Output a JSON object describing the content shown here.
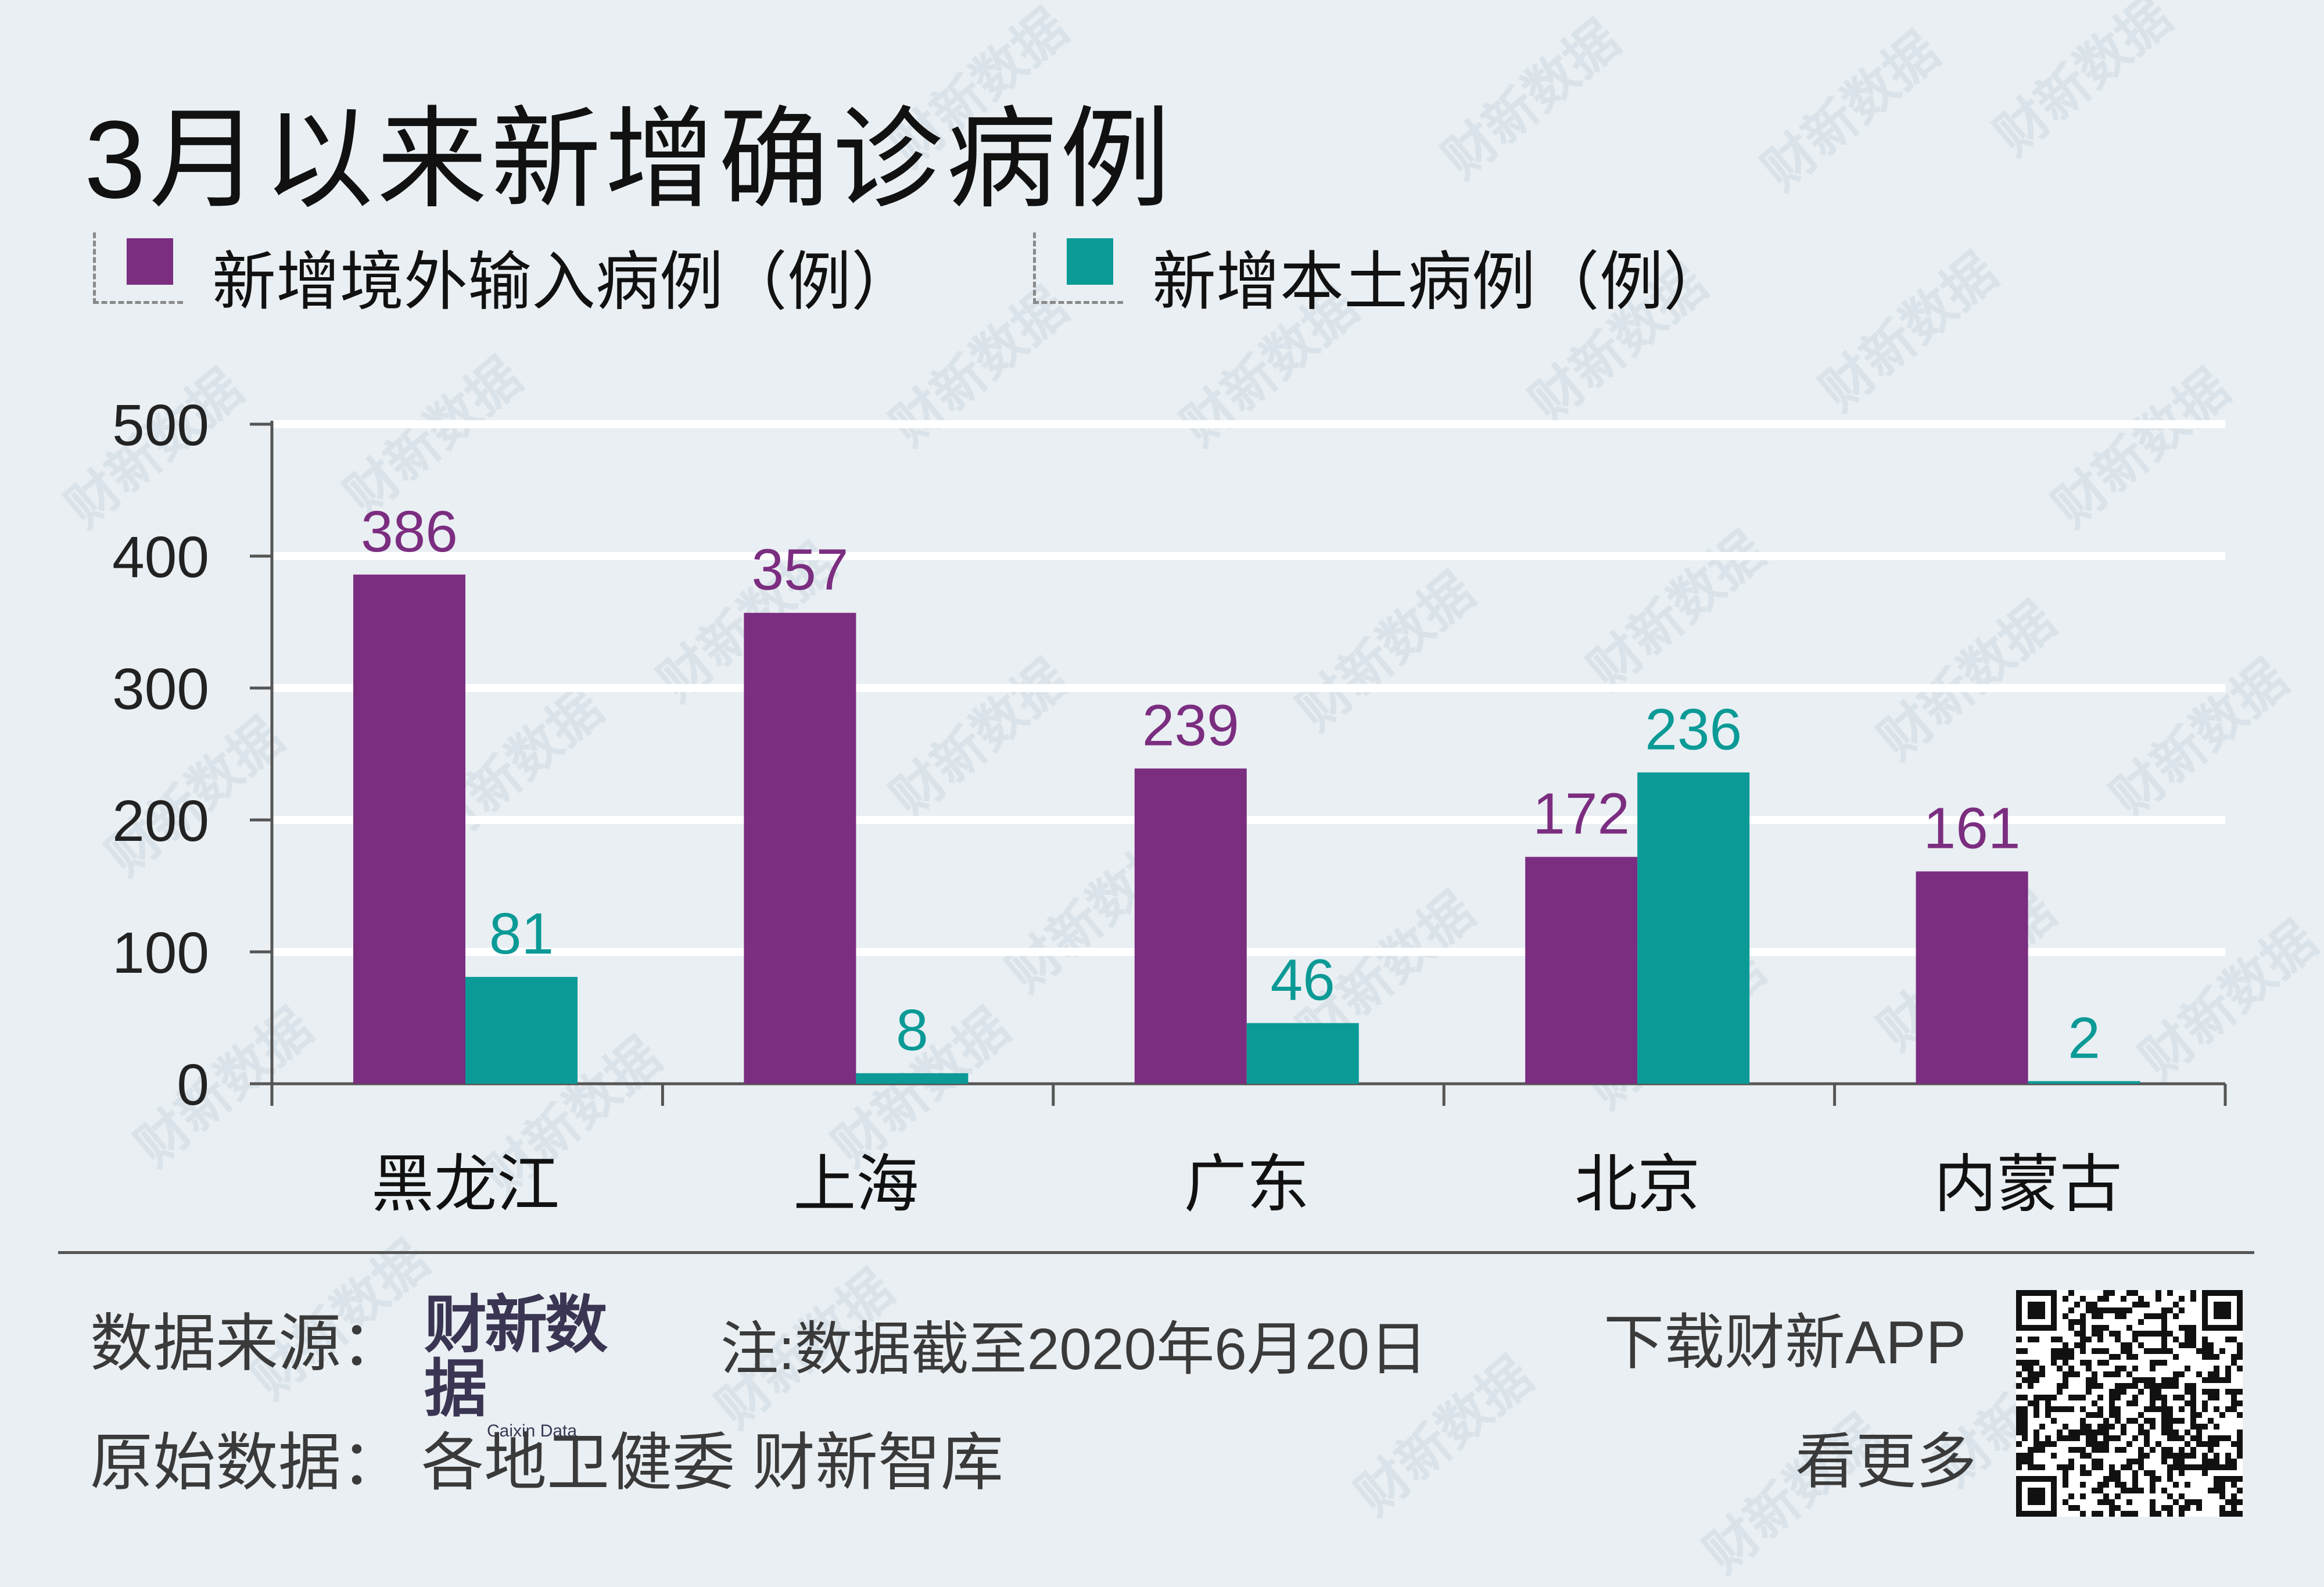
{
  "title": "3月以来新增确诊病例",
  "legend": [
    {
      "label": "新增境外输入病例（例）",
      "color": "#7b2d80"
    },
    {
      "label": "新增本土病例（例）",
      "color": "#0b9a96"
    }
  ],
  "chart_data": {
    "type": "bar",
    "categories": [
      "黑龙江",
      "上海",
      "广东",
      "北京",
      "内蒙古"
    ],
    "series": [
      {
        "name": "新增境外输入病例（例）",
        "values": [
          386,
          357,
          239,
          172,
          161
        ],
        "color": "#7b2d80"
      },
      {
        "name": "新增本土病例（例）",
        "values": [
          81,
          8,
          46,
          236,
          2
        ],
        "color": "#0b9a96"
      }
    ],
    "yticks": [
      0,
      100,
      200,
      300,
      400,
      500
    ],
    "ylim": [
      0,
      500
    ],
    "grid": true,
    "legend_position": "top-left"
  },
  "footer": {
    "source_label": "数据来源：",
    "brand_name": "财新数据",
    "brand_sub": "Caixin Data",
    "note": "注:数据截至2020年6月20日",
    "origin": "原始数据：  各地卫健委 财新智库",
    "download": "下载财新APP",
    "more": "看更多"
  },
  "watermark": "财新数据"
}
